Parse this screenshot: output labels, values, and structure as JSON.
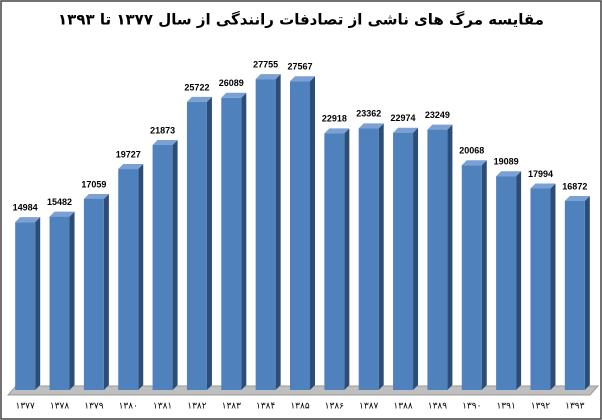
{
  "chart_data": {
    "type": "bar3d",
    "title": "مقایسه مرگ های ناشی از تصادفات رانندگی از سال ۱۳۷۷ تا ۱۳۹۳",
    "categories": [
      "۱۳۷۷",
      "۱۳۷۸",
      "۱۳۷۹",
      "۱۳۸۰",
      "۱۳۸۱",
      "۱۳۸۲",
      "۱۳۸۳",
      "۱۳۸۴",
      "۱۳۸۵",
      "۱۳۸۶",
      "۱۳۸۷",
      "۱۳۸۸",
      "۱۳۸۹",
      "۱۳۹۰",
      "۱۳۹۱",
      "۱۳۹۲",
      "۱۳۹۳"
    ],
    "values": [
      14984,
      15482,
      17059,
      19727,
      21873,
      25722,
      26089,
      27755,
      27567,
      22918,
      23362,
      22974,
      23249,
      20068,
      19089,
      17994,
      16872
    ],
    "color": "#4f81bd",
    "ylim": [
      0,
      30000
    ]
  }
}
